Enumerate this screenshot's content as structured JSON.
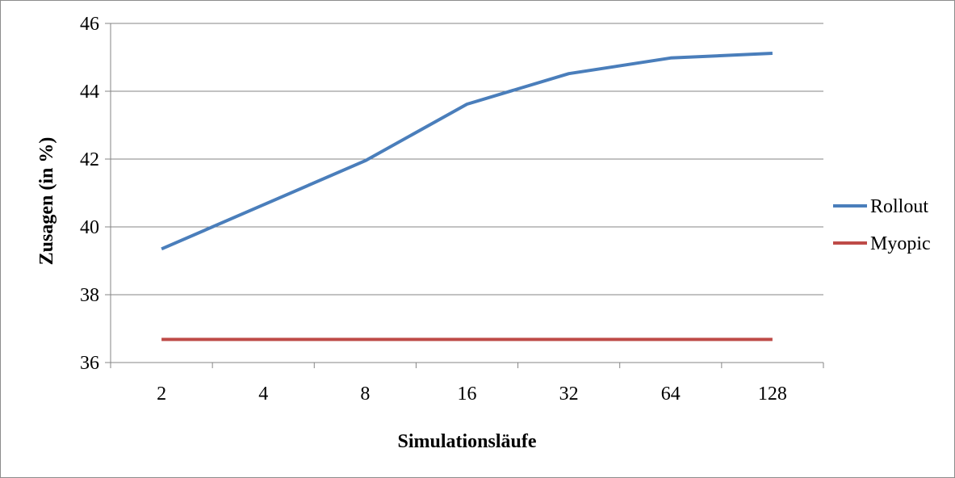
{
  "chart_data": {
    "type": "line",
    "categories": [
      "2",
      "4",
      "8",
      "16",
      "32",
      "64",
      "128"
    ],
    "series": [
      {
        "name": "Rollout",
        "color": "#4A7EBB",
        "values": [
          39.35,
          40.65,
          41.95,
          43.62,
          44.52,
          44.98,
          45.12
        ]
      },
      {
        "name": "Myopic",
        "color": "#BE4B48",
        "values": [
          36.68,
          36.68,
          36.68,
          36.68,
          36.68,
          36.68,
          36.68
        ]
      }
    ],
    "title": "",
    "xlabel": "Simulationsläufe",
    "ylabel": "Zusagen (in %)",
    "ylim": [
      36,
      46
    ],
    "yticks": [
      "36",
      "38",
      "40",
      "42",
      "44",
      "46"
    ],
    "grid": true,
    "legend_position": "right"
  }
}
